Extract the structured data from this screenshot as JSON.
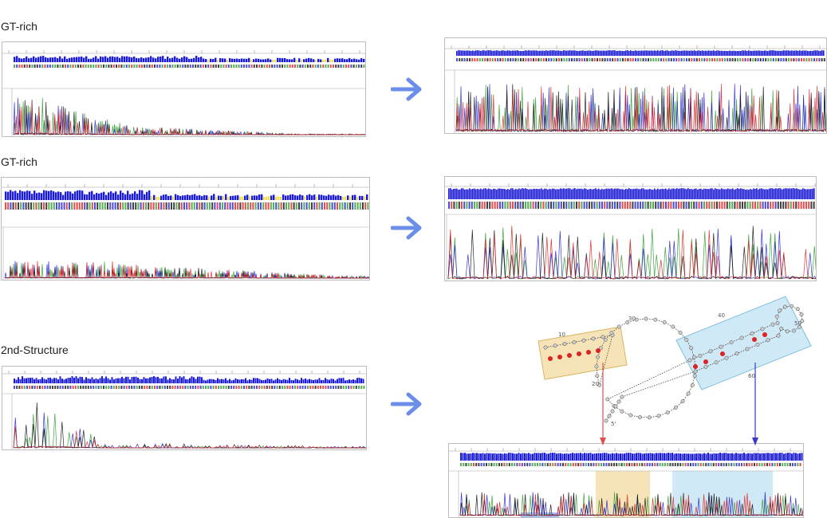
{
  "rows": [
    {
      "id": "gt1",
      "label": "GT-rich"
    },
    {
      "id": "gt2",
      "label": "GT-rich"
    },
    {
      "id": "ss",
      "label": "2nd-Structure"
    }
  ],
  "colors": {
    "arrow": "#6b8fe8",
    "bar": "#1a1adc",
    "bar_low": "#f2e04a",
    "trace_a": "#2e9a2e",
    "trace_c": "#2222cc",
    "trace_g": "#111111",
    "trace_t": "#dd2222",
    "highlight_yellow": "#f3dba0",
    "highlight_blue": "#bfe2f3"
  },
  "structure": {
    "position_labels": [
      "10",
      "20",
      "30",
      "40",
      "50",
      "60"
    ],
    "strand_end_label": "5'"
  }
}
